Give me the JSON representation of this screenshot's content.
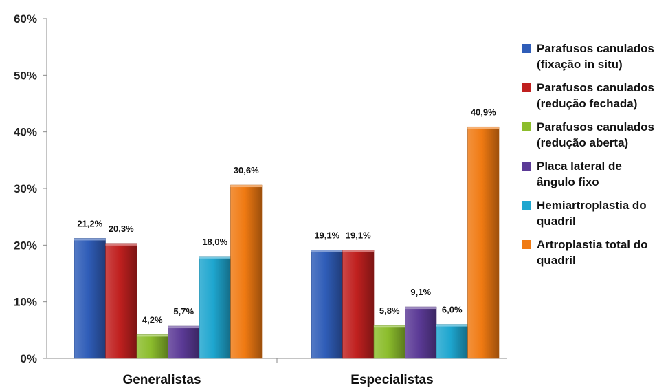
{
  "chart_data": {
    "type": "bar",
    "categories": [
      "Generalistas",
      "Especialistas"
    ],
    "ylim": [
      0,
      60
    ],
    "yticks": [
      "0%",
      "10%",
      "20%",
      "30%",
      "40%",
      "50%",
      "60%"
    ],
    "grid": false,
    "legend_position": "right",
    "series": [
      {
        "name_lines": [
          "Parafusos canulados",
          "(fixação in situ)"
        ],
        "color": "#2f5db8",
        "values": [
          21.2,
          19.1
        ],
        "labels": [
          "21,2%",
          "19,1%"
        ]
      },
      {
        "name_lines": [
          "Parafusos canulados",
          "(redução fechada)"
        ],
        "color": "#c0201f",
        "values": [
          20.3,
          19.1
        ],
        "labels": [
          "20,3%",
          "19,1%"
        ]
      },
      {
        "name_lines": [
          "Parafusos canulados",
          "(redução aberta)"
        ],
        "color": "#8cbd2c",
        "values": [
          4.2,
          5.8
        ],
        "labels": [
          "4,2%",
          "5,8%"
        ]
      },
      {
        "name_lines": [
          "Placa lateral de",
          "ângulo fixo"
        ],
        "color": "#5b3a96",
        "values": [
          5.7,
          9.1
        ],
        "labels": [
          "5,7%",
          "9,1%"
        ]
      },
      {
        "name_lines": [
          "Hemiartroplastia do",
          "quadril"
        ],
        "color": "#1ea6cf",
        "values": [
          18.0,
          6.0
        ],
        "labels": [
          "18,0%",
          "6,0%"
        ]
      },
      {
        "name_lines": [
          "Artroplastia total do",
          "quadril"
        ],
        "color": "#f07a12",
        "values": [
          30.6,
          40.9
        ],
        "labels": [
          "30,6%",
          "40,9%"
        ]
      }
    ]
  }
}
